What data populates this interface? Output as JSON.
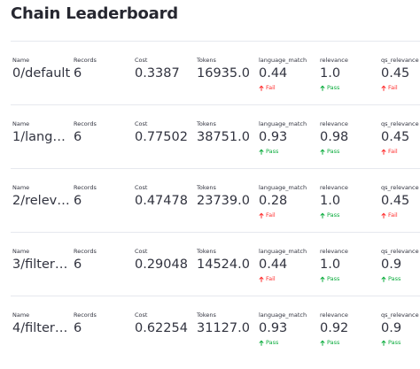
{
  "title": "Chain Leaderboard",
  "labels": {
    "name": "Name",
    "records": "Records",
    "cost": "Cost",
    "tokens": "Tokens",
    "language_match": "language_match",
    "relevance": "relevance",
    "qs_relevance": "qs_relevance"
  },
  "colors": {
    "fail": "#ff2b2b",
    "pass": "#09ab3b"
  },
  "rows": [
    {
      "name": "0/default",
      "records": "6",
      "cost": "0.3387",
      "tokens": "16935.0",
      "language_match": {
        "value": "0.44",
        "status": "Fail"
      },
      "relevance": {
        "value": "1.0",
        "status": "Pass"
      },
      "qs_relevance": {
        "value": "0.45",
        "status": "Fail"
      }
    },
    {
      "name": "1/lang…",
      "records": "6",
      "cost": "0.77502",
      "tokens": "38751.0",
      "language_match": {
        "value": "0.93",
        "status": "Pass"
      },
      "relevance": {
        "value": "0.98",
        "status": "Pass"
      },
      "qs_relevance": {
        "value": "0.45",
        "status": "Fail"
      }
    },
    {
      "name": "2/relev…",
      "records": "6",
      "cost": "0.47478",
      "tokens": "23739.0",
      "language_match": {
        "value": "0.28",
        "status": "Fail"
      },
      "relevance": {
        "value": "1.0",
        "status": "Pass"
      },
      "qs_relevance": {
        "value": "0.45",
        "status": "Fail"
      }
    },
    {
      "name": "3/filter…",
      "records": "6",
      "cost": "0.29048",
      "tokens": "14524.0",
      "language_match": {
        "value": "0.44",
        "status": "Fail"
      },
      "relevance": {
        "value": "1.0",
        "status": "Pass"
      },
      "qs_relevance": {
        "value": "0.9",
        "status": "Pass"
      }
    },
    {
      "name": "4/filter…",
      "records": "6",
      "cost": "0.62254",
      "tokens": "31127.0",
      "language_match": {
        "value": "0.93",
        "status": "Pass"
      },
      "relevance": {
        "value": "0.92",
        "status": "Pass"
      },
      "qs_relevance": {
        "value": "0.9",
        "status": "Pass"
      }
    }
  ]
}
